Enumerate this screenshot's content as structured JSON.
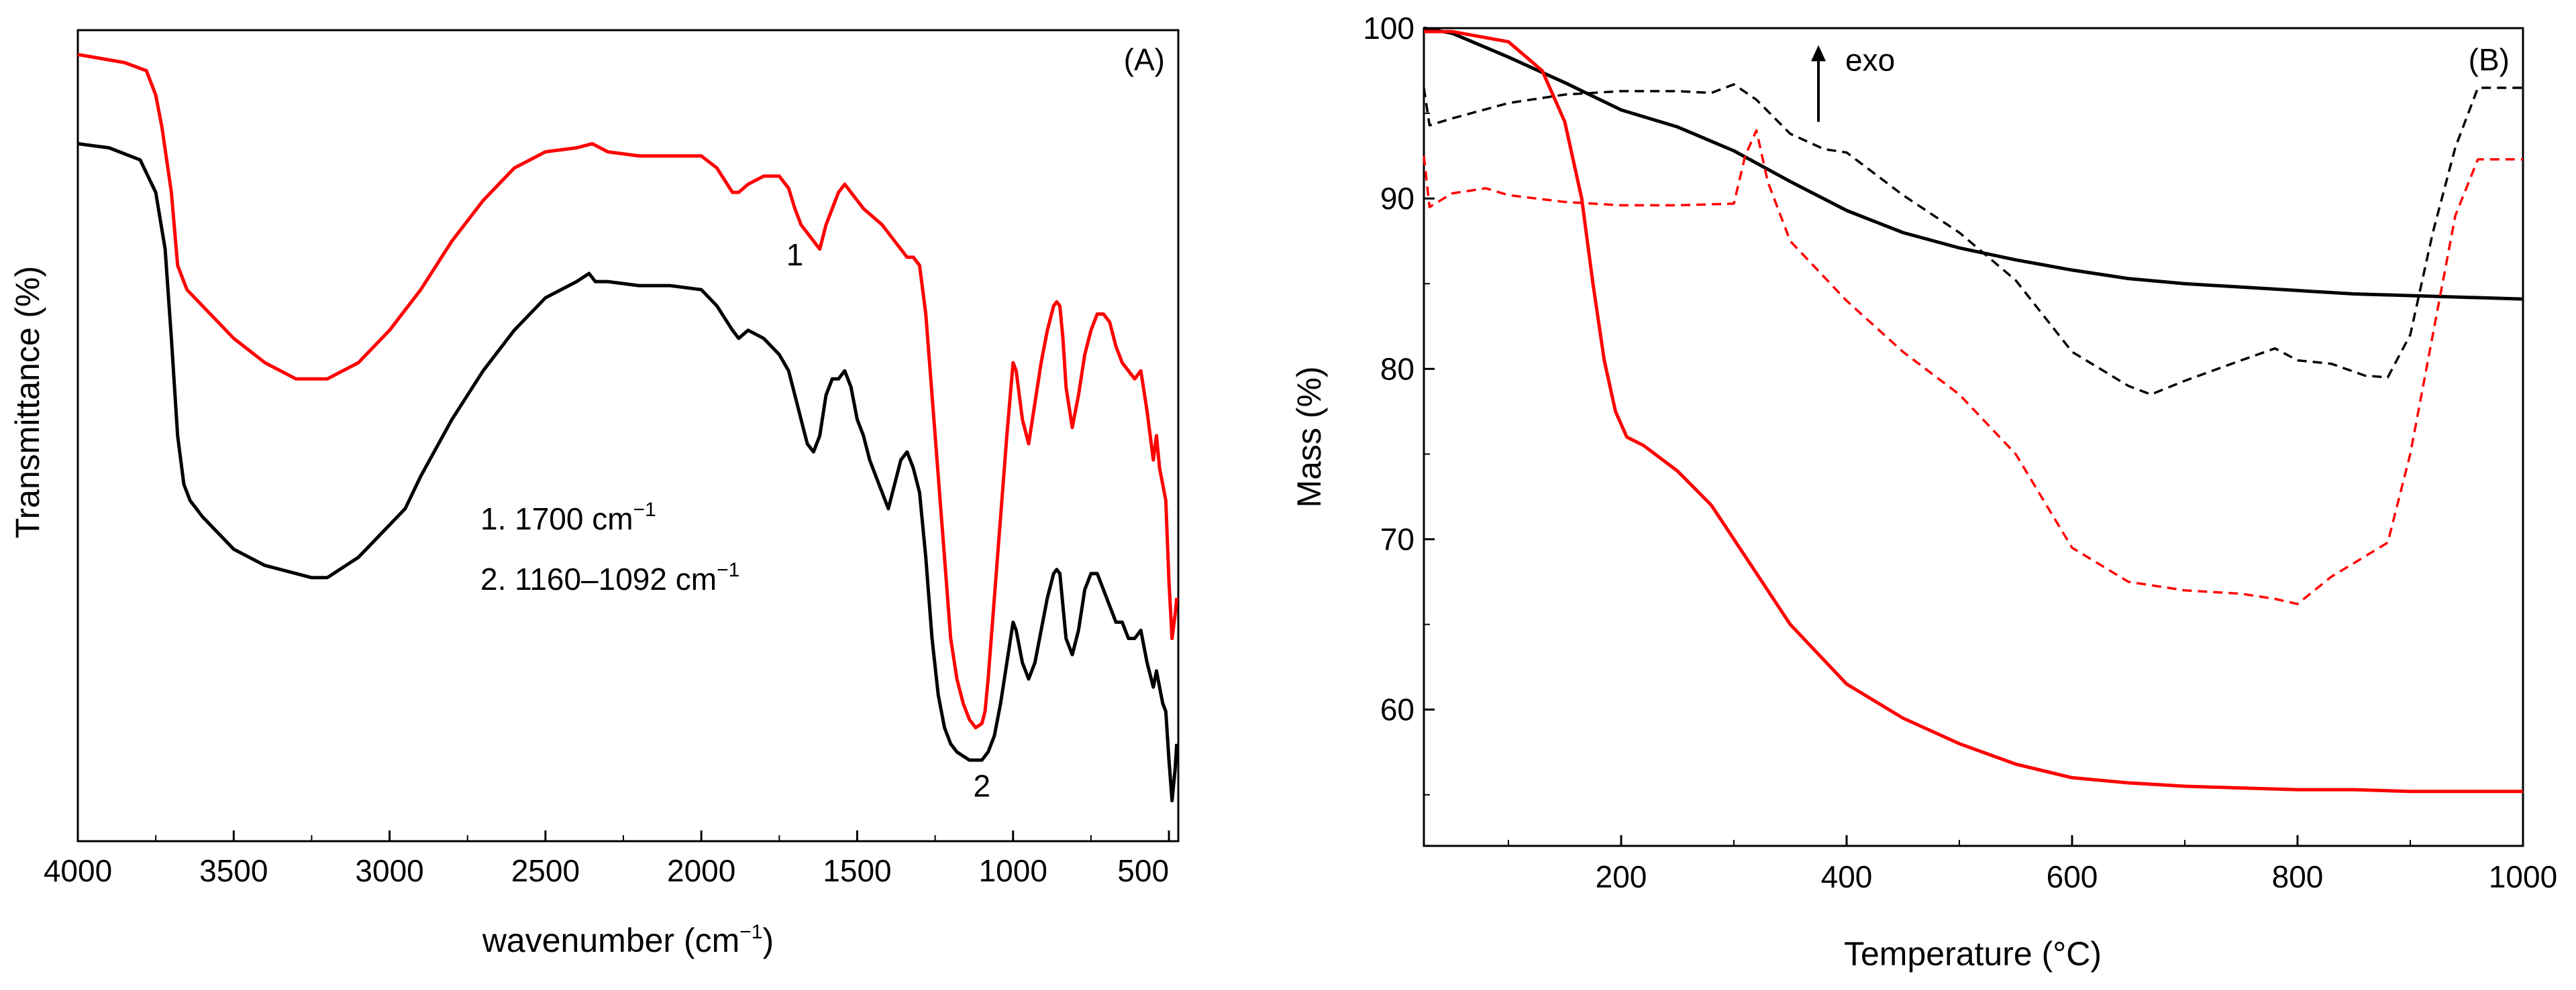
{
  "chart_data": [
    {
      "panel": "A",
      "type": "line",
      "panel_label": "(A)",
      "xlabel": "wavenumber (cm",
      "xlabel_sup": "−1",
      "xlabel_end": ")",
      "ylabel": "Transmittance (%)",
      "xlim": [
        4000,
        470
      ],
      "ylim": [
        0,
        100
      ],
      "x_ticks": [
        4000,
        3500,
        3000,
        2500,
        2000,
        1500,
        1000,
        500
      ],
      "x_tick_labels": [
        "4000",
        "3500",
        "3000",
        "2500",
        "2000",
        "1500",
        "1000",
        "500"
      ],
      "y_ticks_labeled": false,
      "annotations": [
        {
          "text": "1",
          "x": 1700,
          "y": 71
        },
        {
          "text": "2",
          "x": 1100,
          "y": 5.5
        }
      ],
      "legend_notes": [
        {
          "text": "1. 1700 cm",
          "sup": "−1",
          "after": ""
        },
        {
          "text": "2. 1160–1092 cm",
          "sup": "−1",
          "after": ""
        }
      ],
      "series": [
        {
          "name": "red-spectrum",
          "color": "#ff0000",
          "style": "solid",
          "x": [
            4000,
            3850,
            3780,
            3750,
            3730,
            3700,
            3680,
            3650,
            3600,
            3500,
            3400,
            3300,
            3200,
            3100,
            3000,
            2900,
            2800,
            2700,
            2600,
            2500,
            2400,
            2350,
            2300,
            2200,
            2100,
            2000,
            1950,
            1900,
            1880,
            1850,
            1800,
            1750,
            1720,
            1700,
            1680,
            1660,
            1640,
            1620,
            1600,
            1580,
            1560,
            1540,
            1520,
            1500,
            1480,
            1450,
            1420,
            1400,
            1380,
            1360,
            1340,
            1320,
            1300,
            1280,
            1260,
            1240,
            1220,
            1200,
            1180,
            1160,
            1140,
            1120,
            1100,
            1090,
            1080,
            1060,
            1040,
            1020,
            1000,
            990,
            970,
            950,
            930,
            910,
            890,
            870,
            860,
            850,
            840,
            830,
            810,
            790,
            770,
            750,
            730,
            710,
            690,
            670,
            650,
            630,
            610,
            590,
            570,
            550,
            540,
            530,
            520,
            510,
            500,
            490,
            480,
            475
          ],
          "y": [
            97,
            96,
            95,
            92,
            88,
            80,
            71,
            68,
            66,
            62,
            59,
            57,
            57,
            59,
            63,
            68,
            74,
            79,
            83,
            85,
            85.5,
            86,
            85,
            84.5,
            84.5,
            84.5,
            83,
            80,
            80,
            81,
            82,
            82,
            80.5,
            78,
            76,
            75,
            74,
            73,
            76,
            78,
            80,
            81,
            80,
            79,
            78,
            77,
            76,
            75,
            74,
            73,
            72,
            72,
            71,
            65,
            55,
            45,
            35,
            25,
            20,
            17,
            15,
            14,
            14.5,
            16,
            20,
            30,
            40,
            50,
            59,
            58,
            52,
            49,
            54,
            59,
            63,
            66,
            66.5,
            66,
            62,
            56,
            51,
            55,
            60,
            63,
            65,
            65,
            64,
            61,
            59,
            58,
            57,
            58,
            53,
            47,
            50,
            46,
            44,
            42,
            32,
            25,
            28,
            30
          ],
          "markers": false
        },
        {
          "name": "black-spectrum",
          "color": "#000000",
          "style": "solid",
          "x": [
            4000,
            3900,
            3800,
            3750,
            3720,
            3700,
            3680,
            3660,
            3640,
            3600,
            3500,
            3400,
            3300,
            3250,
            3200,
            3100,
            3000,
            2950,
            2900,
            2800,
            2700,
            2600,
            2500,
            2400,
            2360,
            2340,
            2300,
            2200,
            2100,
            2000,
            1950,
            1900,
            1880,
            1850,
            1800,
            1750,
            1720,
            1700,
            1680,
            1660,
            1640,
            1620,
            1600,
            1580,
            1560,
            1540,
            1520,
            1500,
            1480,
            1460,
            1440,
            1420,
            1400,
            1380,
            1360,
            1340,
            1320,
            1300,
            1280,
            1260,
            1240,
            1220,
            1200,
            1180,
            1160,
            1140,
            1120,
            1100,
            1080,
            1060,
            1040,
            1020,
            1000,
            990,
            970,
            950,
            930,
            910,
            890,
            870,
            860,
            850,
            840,
            830,
            810,
            790,
            770,
            750,
            730,
            710,
            690,
            670,
            650,
            630,
            610,
            590,
            570,
            550,
            540,
            530,
            520,
            510,
            500,
            490,
            480,
            475
          ],
          "y": [
            86,
            85.5,
            84,
            80,
            73,
            62,
            50,
            44,
            42,
            40,
            36,
            34,
            33,
            32.5,
            32.5,
            35,
            39,
            41,
            45,
            52,
            58,
            63,
            67,
            69,
            70,
            69,
            69,
            68.5,
            68.5,
            68,
            66,
            63,
            62,
            63,
            62,
            60,
            58,
            55,
            52,
            49,
            48,
            50,
            55,
            57,
            57,
            58,
            56,
            52,
            50,
            47,
            45,
            43,
            41,
            44,
            47,
            48,
            46,
            43,
            35,
            25,
            18,
            14,
            12,
            11,
            10.5,
            10,
            10,
            10,
            11,
            13,
            17,
            22,
            27,
            26,
            22,
            20,
            22,
            26,
            30,
            33,
            33.5,
            33,
            29,
            25,
            23,
            26,
            31,
            33,
            33,
            31,
            29,
            27,
            27,
            25,
            25,
            26,
            22,
            19,
            21,
            19,
            17,
            16,
            10,
            5,
            9,
            12
          ],
          "markers": false
        }
      ]
    },
    {
      "panel": "B",
      "type": "line",
      "panel_label": "(B)",
      "xlabel": "Temperature (°C)",
      "ylabel": "Mass (%)",
      "xlim": [
        25,
        1000
      ],
      "ylim": [
        52,
        100
      ],
      "x_ticks": [
        200,
        400,
        600,
        800,
        1000
      ],
      "x_tick_labels": [
        "200",
        "400",
        "600",
        "800",
        "1000"
      ],
      "y_ticks": [
        60,
        70,
        80,
        90,
        100
      ],
      "y_tick_labels": [
        "60",
        "70",
        "80",
        "90",
        "100"
      ],
      "arrow_label": "exo",
      "arrow_at": {
        "x": 375,
        "from_y": 94.5,
        "to_y": 99
      },
      "series": [
        {
          "name": "black-mass",
          "color": "#000000",
          "style": "solid",
          "x": [
            25,
            50,
            100,
            150,
            200,
            250,
            300,
            350,
            400,
            450,
            500,
            550,
            600,
            650,
            700,
            750,
            800,
            850,
            900,
            950,
            1000
          ],
          "y": [
            100,
            99.7,
            98.3,
            96.8,
            95.2,
            94.2,
            92.8,
            91,
            89.3,
            88,
            87.1,
            86.4,
            85.8,
            85.3,
            85,
            84.8,
            84.6,
            84.4,
            84.3,
            84.2,
            84.1
          ]
        },
        {
          "name": "red-mass",
          "color": "#ff0000",
          "style": "solid",
          "x": [
            25,
            50,
            100,
            130,
            150,
            165,
            175,
            185,
            195,
            205,
            220,
            250,
            280,
            300,
            320,
            350,
            400,
            450,
            500,
            550,
            600,
            650,
            700,
            750,
            800,
            850,
            900,
            950,
            1000
          ],
          "y": [
            99.8,
            99.8,
            99.2,
            97.5,
            94.5,
            90,
            85,
            80.5,
            77.5,
            76,
            75.5,
            74,
            72,
            70,
            68,
            65,
            61.5,
            59.5,
            58,
            56.8,
            56,
            55.7,
            55.5,
            55.4,
            55.3,
            55.3,
            55.2,
            55.2,
            55.2
          ]
        },
        {
          "name": "black-dta",
          "color": "#000000",
          "style": "dashed-short",
          "x": [
            25,
            30,
            50,
            100,
            150,
            200,
            250,
            280,
            300,
            320,
            350,
            380,
            400,
            450,
            500,
            550,
            600,
            650,
            670,
            700,
            750,
            780,
            800,
            830,
            860,
            880,
            900,
            920,
            940,
            960,
            1000
          ],
          "y": [
            96.5,
            94.3,
            94.7,
            95.6,
            96.1,
            96.3,
            96.3,
            96.2,
            96.7,
            95.8,
            93.8,
            92.9,
            92.7,
            90.2,
            88,
            85.2,
            81,
            79,
            78.5,
            79.3,
            80.5,
            81.2,
            80.5,
            80.3,
            79.6,
            79.5,
            82,
            88,
            93,
            96.5,
            96.5
          ]
        },
        {
          "name": "red-dta",
          "color": "#ff0000",
          "style": "dashed-short",
          "x": [
            25,
            30,
            50,
            80,
            100,
            150,
            200,
            250,
            300,
            310,
            320,
            330,
            350,
            400,
            450,
            500,
            550,
            600,
            650,
            670,
            700,
            750,
            780,
            800,
            830,
            860,
            880,
            900,
            920,
            940,
            960,
            1000
          ],
          "y": [
            92.5,
            89.5,
            90.3,
            90.6,
            90.2,
            89.8,
            89.6,
            89.6,
            89.7,
            92.5,
            94,
            91,
            87.5,
            84,
            81,
            78.5,
            75,
            69.5,
            67.5,
            67.3,
            67,
            66.8,
            66.5,
            66.2,
            67.8,
            69,
            69.8,
            75,
            82,
            89,
            92.3,
            92.3
          ]
        }
      ]
    }
  ]
}
